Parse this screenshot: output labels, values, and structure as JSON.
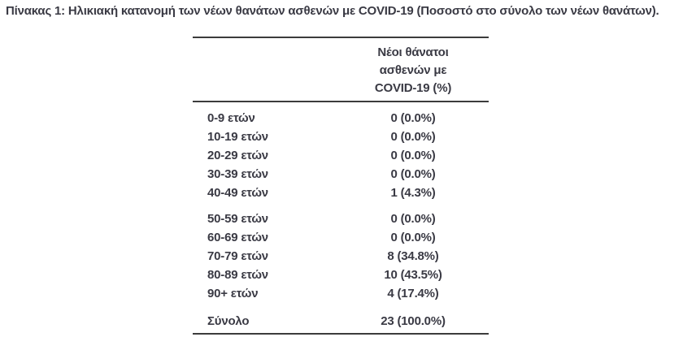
{
  "page": {
    "title": "Πίνακας 1: Ηλικιακή κατανομή των νέων θανάτων ασθενών με COVID-19 (Ποσοστό στο σύνολο των νέων θανάτων)."
  },
  "table": {
    "header": {
      "line1": "Νέοι θάνατοι",
      "line2": "ασθενών με",
      "line3": "COVID-19 (%)"
    },
    "group1": [
      {
        "label": "0-9 ετών",
        "value": "0 (0.0%)"
      },
      {
        "label": "10-19 ετών",
        "value": "0 (0.0%)"
      },
      {
        "label": "20-29 ετών",
        "value": "0 (0.0%)"
      },
      {
        "label": "30-39 ετών",
        "value": "0 (0.0%)"
      },
      {
        "label": "40-49 ετών",
        "value": "1 (4.3%)"
      }
    ],
    "group2": [
      {
        "label": "50-59 ετών",
        "value": "0 (0.0%)"
      },
      {
        "label": "60-69 ετών",
        "value": "0 (0.0%)"
      },
      {
        "label": "70-79 ετών",
        "value": "8 (34.8%)"
      },
      {
        "label": "80-89 ετών",
        "value": "10 (43.5%)"
      },
      {
        "label": "90+ ετών",
        "value": "4 (17.4%)"
      }
    ],
    "total": {
      "label": "Σύνολο",
      "value": "23 (100.0%)"
    }
  },
  "chart_data": {
    "type": "table",
    "title": "Πίνακας 1: Ηλικιακή κατανομή των νέων θανάτων ασθενών με COVID-19 (Ποσοστό στο σύνολο των νέων θανάτων).",
    "value_column_header": "Νέοι θάνατοι ασθενών με COVID-19 (%)",
    "categories": [
      "0-9 ετών",
      "10-19 ετών",
      "20-29 ετών",
      "30-39 ετών",
      "40-49 ετών",
      "50-59 ετών",
      "60-69 ετών",
      "70-79 ετών",
      "80-89 ετών",
      "90+ ετών",
      "Σύνολο"
    ],
    "deaths": [
      0,
      0,
      0,
      0,
      1,
      0,
      0,
      8,
      10,
      4,
      23
    ],
    "percentages": [
      0.0,
      0.0,
      0.0,
      0.0,
      4.3,
      0.0,
      0.0,
      34.8,
      43.5,
      17.4,
      100.0
    ]
  },
  "colors": {
    "text": "#3a3a44",
    "rule": "#3c3c3c",
    "background": "#ffffff"
  }
}
